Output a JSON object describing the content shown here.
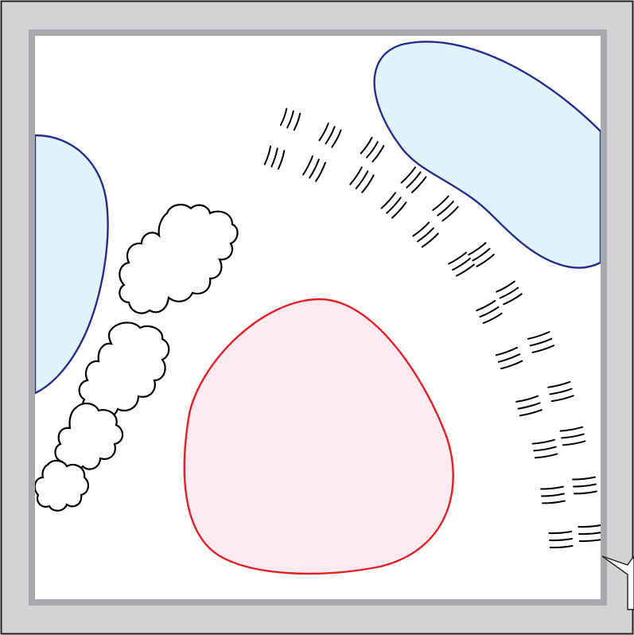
{
  "map": {
    "colors": {
      "outer_frame": "#d1d3d4",
      "inner_frame": "#a7a9ac",
      "canvas": "#ffffff",
      "border_line": "#231f20",
      "water_fill": "#e1f3fa",
      "water_stroke": "#262d8c",
      "zone_fill": "#fdebf1",
      "zone_stroke": "#e31e25",
      "vegetation_stroke": "#000000",
      "hatch_stroke": "#000000"
    },
    "features": [
      {
        "kind": "water-body",
        "name": "lake-left"
      },
      {
        "kind": "water-body",
        "name": "lake-top-right"
      },
      {
        "kind": "highlighted-zone",
        "name": "central-zone"
      },
      {
        "kind": "vegetation",
        "name": "tree-line"
      },
      {
        "kind": "ridge-hatching",
        "name": "slope-hatching"
      },
      {
        "kind": "callout",
        "name": "corner-callout"
      }
    ]
  }
}
